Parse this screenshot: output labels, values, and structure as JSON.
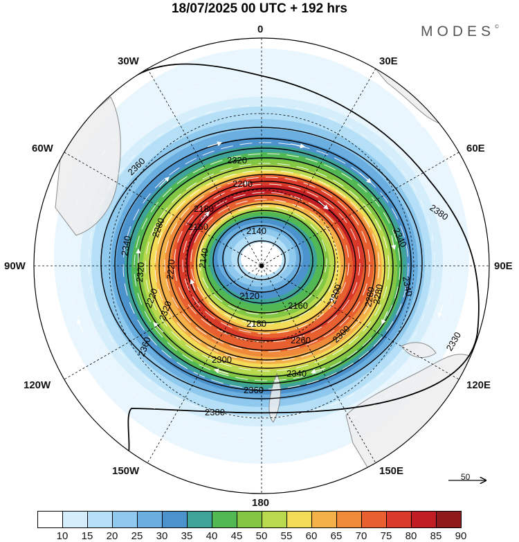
{
  "title": "18/07/2025  00 UTC  + 192 hrs",
  "brand": "MODES",
  "brand_mark": "©",
  "longitude_labels": {
    "top": "0",
    "bottom": "180",
    "w30": "30W",
    "e30": "30E",
    "w60": "60W",
    "e60": "60E",
    "w90": "90W",
    "e90": "90E",
    "w120": "120W",
    "e120": "120E",
    "w150": "150W",
    "e150": "150E"
  },
  "contour_labels": [
    "2320",
    "2280",
    "2200",
    "2180",
    "2160",
    "2140",
    "2140",
    "2120",
    "2120",
    "2160",
    "2180",
    "2200",
    "2260",
    "2280",
    "2300",
    "2340",
    "2360",
    "2380",
    "2360",
    "2340",
    "2320",
    "2320",
    "2300",
    "2360",
    "2380",
    "2330",
    "2340",
    "2340",
    "2280",
    "2260",
    "2220",
    "2220"
  ],
  "reference_vector": {
    "label": "50"
  },
  "colorbar": {
    "ticks": [
      "10",
      "15",
      "20",
      "25",
      "30",
      "35",
      "40",
      "45",
      "50",
      "55",
      "60",
      "65",
      "70",
      "75",
      "80",
      "85",
      "90"
    ],
    "colors": [
      "#ffffff",
      "#d4eefb",
      "#b4dff6",
      "#8fc9ee",
      "#6bafe0",
      "#4c92cc",
      "#3fa39a",
      "#52b854",
      "#84c745",
      "#b9d94e",
      "#f3dc58",
      "#f5b149",
      "#f08a3b",
      "#e8602f",
      "#d93a2a",
      "#c01e24",
      "#8f1a1c"
    ]
  }
}
